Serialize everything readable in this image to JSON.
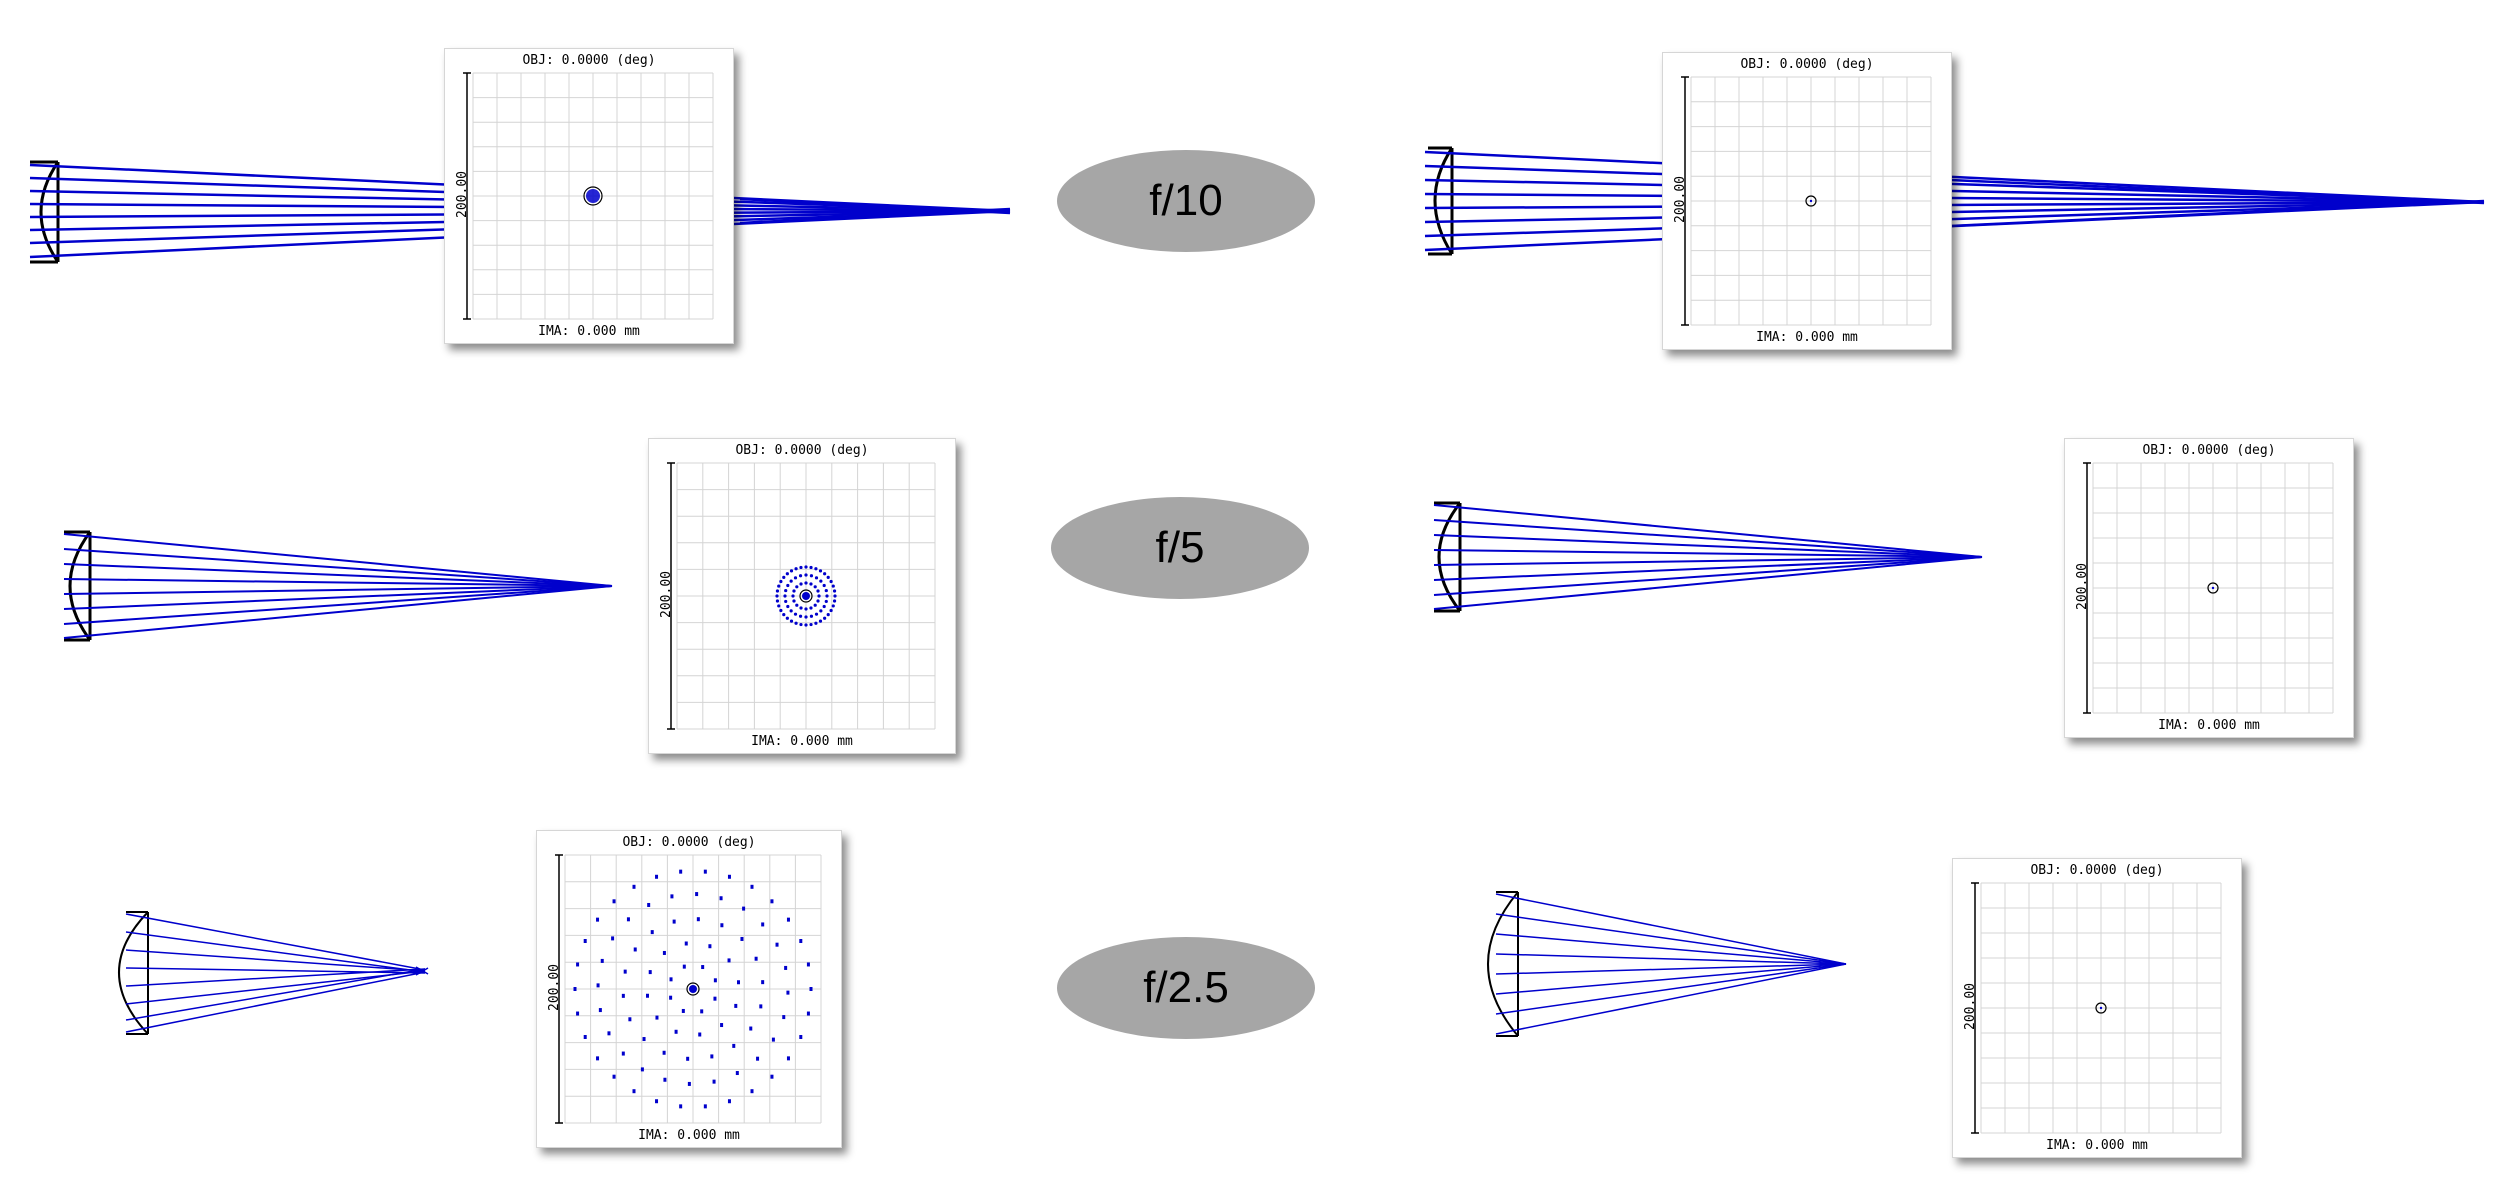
{
  "fnumbers": [
    "f/10",
    "f/5",
    "f/2.5"
  ],
  "spot_labels": {
    "obj": "OBJ: 0.0000 (deg)",
    "ima": "IMA: 0.000 mm",
    "scale": "200.00"
  },
  "colors": {
    "ray": "#0000cc",
    "lens": "#000000",
    "ellipse": "#a6a6a6",
    "grid": "#d4d4d4"
  }
}
